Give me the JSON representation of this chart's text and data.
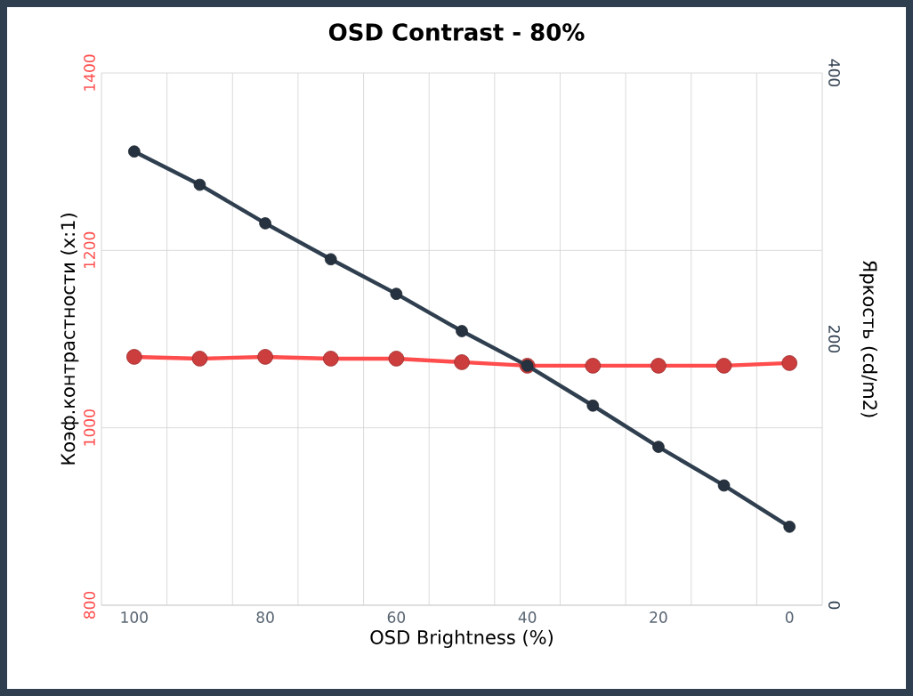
{
  "chart_data": {
    "type": "line",
    "title": "OSD Contrast - 80%",
    "xlabel": "OSD Brightness (%)",
    "ylabel": "Коэф.контрастности (x:1)",
    "y2label": "Яркость (cd/m2)",
    "categories": [
      "100",
      null,
      "80",
      null,
      "60",
      null,
      "40",
      null,
      "20",
      null,
      "0"
    ],
    "series": [
      {
        "color": "#ff4c4c",
        "values": [
          1080,
          1078,
          1080,
          1078,
          1078,
          1074,
          1070,
          1070,
          1070,
          1070,
          1073
        ]
      },
      {
        "color": "#2f3f4f",
        "axis": "y2",
        "values": [
          341,
          316,
          287,
          260,
          234,
          206,
          180,
          150,
          119,
          90,
          59
        ]
      }
    ],
    "ylim": [
      800,
      1400
    ],
    "yticks": [
      800,
      1000,
      1200,
      1400
    ],
    "y2lim": [
      0,
      400
    ],
    "y2ticks": [
      0,
      200,
      400
    ],
    "grid": true,
    "marker": "circle"
  }
}
